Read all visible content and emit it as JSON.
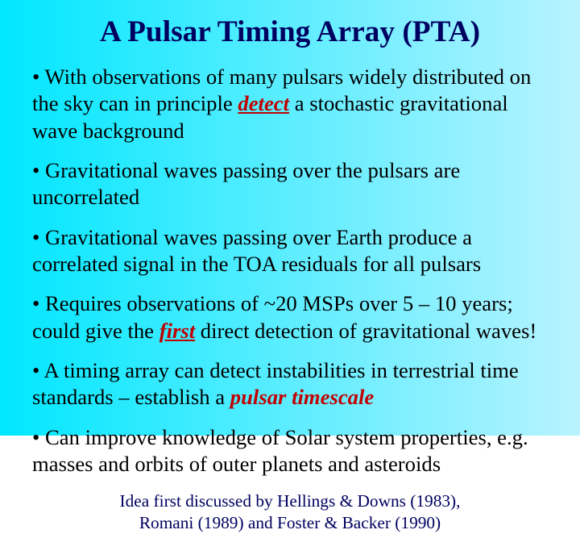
{
  "background": {
    "gradient_start": "#00e7ff",
    "gradient_end": "#b9f3ff",
    "angle_deg": 90
  },
  "title": {
    "text": "A Pulsar Timing Array (PTA)",
    "color": "#000060",
    "fontsize_pt": 28,
    "bold": true
  },
  "bullets": [
    {
      "pre": "• With observations of many pulsars widely distributed on the sky can in principle ",
      "em": "detect",
      "em_underline": true,
      "post": " a stochastic gravitational wave background"
    },
    {
      "pre": "• Gravitational waves passing over the pulsars are uncorrelated",
      "em": "",
      "em_underline": false,
      "post": ""
    },
    {
      "pre": "• Gravitational waves passing over Earth produce a correlated signal in the TOA residuals for all pulsars",
      "em": "",
      "em_underline": false,
      "post": ""
    },
    {
      "pre": "• Requires observations of ~20 MSPs over 5 – 10 years; could give the ",
      "em": "first",
      "em_underline": true,
      "post": " direct detection of gravitational waves!"
    },
    {
      "pre": "• A timing array can detect instabilities in terrestrial time standards – establish a ",
      "em": "pulsar timescale",
      "em_underline": false,
      "post": ""
    },
    {
      "pre": "• Can improve knowledge of Solar system properties, e.g. masses and orbits of outer planets and asteroids",
      "em": "",
      "em_underline": false,
      "post": ""
    }
  ],
  "bullet_style": {
    "fontsize_pt": 20,
    "color": "#000000",
    "em_color": "#c00000"
  },
  "footer": {
    "line1": "Idea first discussed by Hellings & Downs (1983),",
    "line2": "Romani (1989) and Foster & Backer (1990)",
    "color": "#000060",
    "fontsize_pt": 16
  }
}
